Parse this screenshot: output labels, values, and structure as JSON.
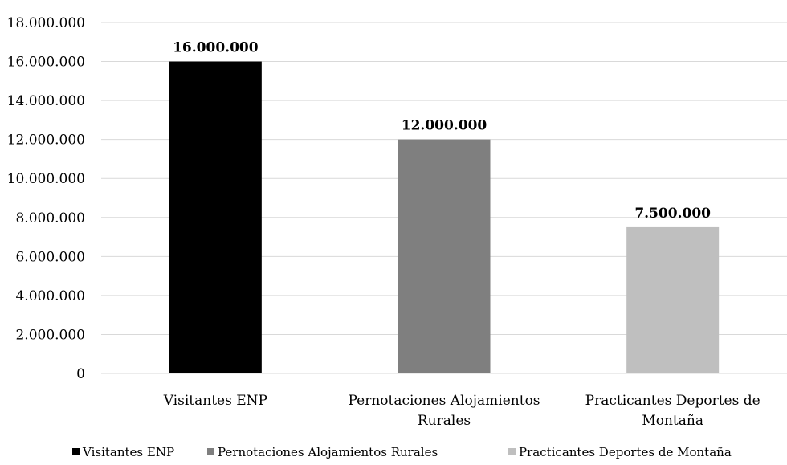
{
  "chart_data": {
    "type": "bar",
    "categories": [
      "Visitantes ENP",
      "Pernotaciones Alojamientos Rurales",
      "Practicantes Deportes de Montaña"
    ],
    "category_label_lines": [
      [
        "Visitantes ENP"
      ],
      [
        "Pernotaciones Alojamientos",
        "Rurales"
      ],
      [
        "Practicantes Deportes de",
        "Montaña"
      ]
    ],
    "values": [
      16000000,
      12000000,
      7500000
    ],
    "data_labels": [
      "16.000.000",
      "12.000.000",
      "7.500.000"
    ],
    "colors": [
      "#000000",
      "#7f7f7f",
      "#bfbfbf"
    ],
    "ylim": [
      0,
      18000000
    ],
    "yticks": [
      0,
      2000000,
      4000000,
      6000000,
      8000000,
      10000000,
      12000000,
      14000000,
      16000000,
      18000000
    ],
    "ytick_labels": [
      "0",
      "2.000.000",
      "4.000.000",
      "6.000.000",
      "8.000.000",
      "10.000.000",
      "12.000.000",
      "14.000.000",
      "16.000.000",
      "18.000.000"
    ],
    "grid": true,
    "legend": {
      "position": "bottom",
      "entries": [
        "Visitantes ENP",
        "Pernotaciones Alojamientos Rurales",
        "Practicantes Deportes de Montaña"
      ]
    },
    "title": "",
    "xlabel": "",
    "ylabel": ""
  }
}
